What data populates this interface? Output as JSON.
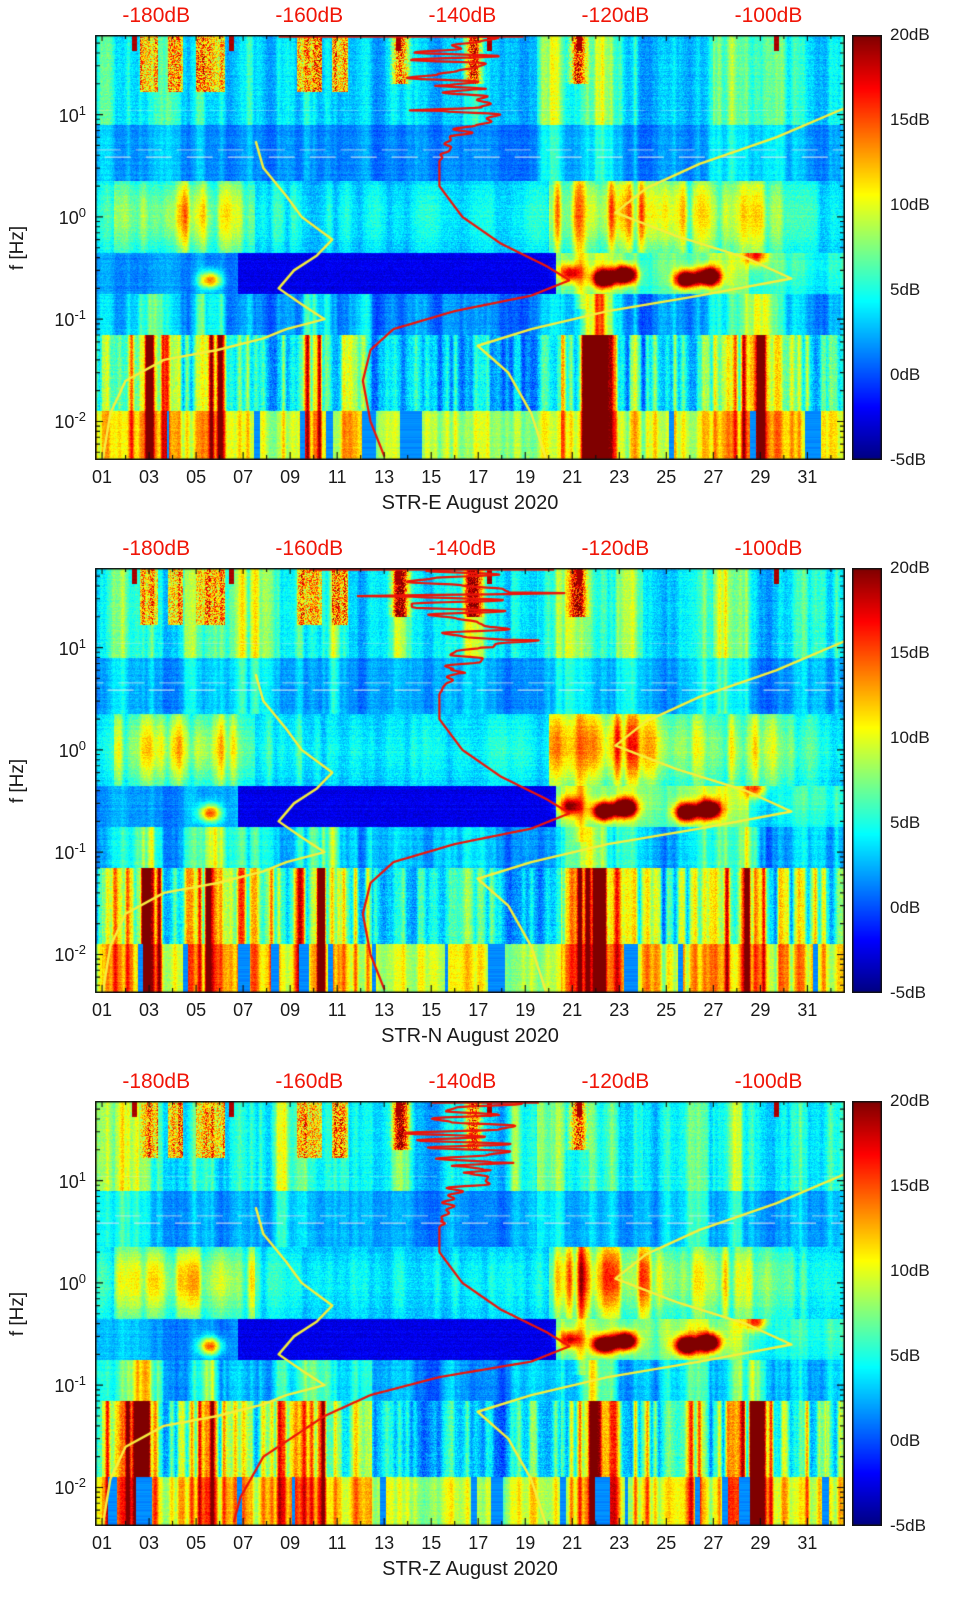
{
  "figure": {
    "ylabel": "f [Hz]",
    "panels": [
      {
        "id": "STR-E",
        "title": "STR-E August 2020"
      },
      {
        "id": "STR-N",
        "title": "STR-N August 2020"
      },
      {
        "id": "STR-Z",
        "title": "STR-Z August 2020"
      }
    ],
    "top_axis": {
      "labels": [
        "-180dB",
        "-160dB",
        "-140dB",
        "-120dB",
        "-100dB"
      ],
      "values_db": [
        -180,
        -160,
        -140,
        -120,
        -100
      ],
      "color": "#f01507"
    },
    "x_axis": {
      "tick_labels": [
        "01",
        "03",
        "05",
        "07",
        "09",
        "11",
        "13",
        "15",
        "17",
        "19",
        "21",
        "23",
        "25",
        "27",
        "29",
        "31"
      ],
      "tick_days": [
        1,
        3,
        5,
        7,
        9,
        11,
        13,
        15,
        17,
        19,
        21,
        23,
        25,
        27,
        29,
        31
      ]
    },
    "y_axis": {
      "base": "10",
      "exponents": [
        "1",
        "0",
        "-1",
        "-2"
      ],
      "exp_values": [
        1,
        0,
        -1,
        -2
      ]
    },
    "colorbar": {
      "labels": [
        "20dB",
        "15dB",
        "10dB",
        "5dB",
        "0dB",
        "-5dB"
      ],
      "values_db": [
        20,
        15,
        10,
        5,
        0,
        -5
      ]
    }
  },
  "chart_data": {
    "type": "heatmap",
    "description": "Three seismic PSD spectrograms (components STR-E, STR-N, STR-Z) for August 2020. x = day of month (01-31), y = frequency in Hz (log scale, ~0.004-60 Hz), color = spectral power deviation in dB (-5 to 20 dB, jet colormap). Overlaid curves are PSD-vs-frequency statistics plotted against the red top dB axis (-188 to -90 dB): red = median PSD, yellow = high/low percentile PSD.",
    "axes": {
      "day_min": 0.7,
      "day_max": 32.6,
      "f_min": 0.0042,
      "f_max": 60,
      "db_min": -188,
      "db_max": -90,
      "v_min": -5,
      "v_max": 20
    },
    "colors": {
      "red_curve": "#ee1409",
      "yellow_curve": "#f6ee3c",
      "frame": "#111111"
    },
    "render_seeds": [
      11,
      57,
      93
    ],
    "features": {
      "hf_red_patches": [
        [
          2.6,
          3.4
        ],
        [
          3.8,
          4.45
        ],
        [
          5.0,
          6.25
        ],
        [
          9.3,
          10.35
        ],
        [
          10.8,
          11.45
        ]
      ],
      "hf_orange_days": [
        13.7,
        16.8,
        21.25
      ],
      "hf_minor_days": [
        13.7,
        16.8,
        18.4
      ],
      "hf_top_dots": [
        2.4,
        6.5,
        13.6,
        17.5,
        21.3,
        29.7
      ],
      "lf_hot_days": [
        2.9,
        5.7,
        10.2,
        22.0,
        28.9
      ],
      "lf_active_ranges": [
        [
          1,
          12.5
        ],
        [
          20.5,
          31.8
        ]
      ],
      "microseism_blobs": [
        [
          22.35,
          0.25,
          22
        ],
        [
          23.25,
          0.27,
          24
        ],
        [
          25.85,
          0.245,
          22
        ],
        [
          26.8,
          0.26,
          24
        ],
        [
          20.9,
          0.28,
          11
        ],
        [
          5.6,
          0.24,
          13
        ],
        [
          28.8,
          0.42,
          11
        ]
      ],
      "bright_column_day": 21.35,
      "light_lines": [
        [
          0.585,
          0.8
        ],
        [
          0.655,
          0.55
        ],
        [
          1.04,
          0.3
        ]
      ]
    },
    "red_jitter": {
      "u_start": 0.55,
      "amp_db": 8,
      "freq": 28
    },
    "panels": [
      {
        "id": "STR-E",
        "red_curve_f_db": [
          [
            60,
            -139
          ],
          [
            25,
            -141
          ],
          [
            12,
            -138
          ],
          [
            6,
            -141
          ],
          [
            3.5,
            -143
          ],
          [
            2,
            -143
          ],
          [
            1,
            -140
          ],
          [
            0.55,
            -135
          ],
          [
            0.33,
            -129
          ],
          [
            0.24,
            -126
          ],
          [
            0.17,
            -131
          ],
          [
            0.12,
            -141
          ],
          [
            0.08,
            -149
          ],
          [
            0.05,
            -152
          ],
          [
            0.025,
            -153
          ],
          [
            0.01,
            -152
          ],
          [
            0.0042,
            -150
          ]
        ],
        "yellow_upper_f_db": [
          [
            11.6,
            -90
          ],
          [
            6,
            -99
          ],
          [
            3.3,
            -109
          ],
          [
            1.9,
            -116
          ],
          [
            1.1,
            -120
          ],
          [
            0.65,
            -112
          ],
          [
            0.4,
            -103
          ],
          [
            0.25,
            -97
          ],
          [
            0.17,
            -109
          ],
          [
            0.12,
            -121
          ],
          [
            0.08,
            -131
          ],
          [
            0.055,
            -138
          ],
          [
            0.03,
            -134
          ],
          [
            0.012,
            -131
          ],
          [
            0.0042,
            -129
          ]
        ],
        "yellow_lower_f_db": [
          [
            5.5,
            -167
          ],
          [
            3.0,
            -166
          ],
          [
            1.6,
            -163
          ],
          [
            1.0,
            -161
          ],
          [
            0.6,
            -157
          ],
          [
            0.42,
            -159
          ],
          [
            0.3,
            -162
          ],
          [
            0.2,
            -164
          ],
          [
            0.14,
            -161
          ],
          [
            0.1,
            -158
          ],
          [
            0.08,
            -163
          ],
          [
            0.065,
            -166
          ],
          [
            0.05,
            -172
          ],
          [
            0.04,
            -179
          ],
          [
            0.025,
            -184
          ],
          [
            0.012,
            -186
          ],
          [
            0.0042,
            -187
          ]
        ],
        "top_clip_db": [
          -164,
          -132
        ]
      },
      {
        "id": "STR-N",
        "red_curve_f_db": [
          [
            60,
            -139
          ],
          [
            25,
            -141
          ],
          [
            12,
            -138
          ],
          [
            6,
            -141
          ],
          [
            3.5,
            -143
          ],
          [
            2,
            -143
          ],
          [
            1,
            -140
          ],
          [
            0.55,
            -135
          ],
          [
            0.33,
            -129
          ],
          [
            0.24,
            -126
          ],
          [
            0.17,
            -131
          ],
          [
            0.12,
            -141
          ],
          [
            0.08,
            -149
          ],
          [
            0.05,
            -152
          ],
          [
            0.025,
            -153
          ],
          [
            0.01,
            -152
          ],
          [
            0.0042,
            -150
          ]
        ],
        "yellow_upper_f_db": [
          [
            11.6,
            -90
          ],
          [
            6,
            -99
          ],
          [
            3.3,
            -109
          ],
          [
            1.9,
            -116
          ],
          [
            1.1,
            -120
          ],
          [
            0.65,
            -112
          ],
          [
            0.4,
            -103
          ],
          [
            0.25,
            -97
          ],
          [
            0.17,
            -109
          ],
          [
            0.12,
            -121
          ],
          [
            0.08,
            -131
          ],
          [
            0.055,
            -138
          ],
          [
            0.03,
            -134
          ],
          [
            0.012,
            -131
          ],
          [
            0.0042,
            -129
          ]
        ],
        "yellow_lower_f_db": [
          [
            5.5,
            -167
          ],
          [
            3.0,
            -166
          ],
          [
            1.6,
            -163
          ],
          [
            1.0,
            -161
          ],
          [
            0.6,
            -157
          ],
          [
            0.42,
            -159
          ],
          [
            0.3,
            -162
          ],
          [
            0.2,
            -164
          ],
          [
            0.14,
            -161
          ],
          [
            0.1,
            -158
          ],
          [
            0.08,
            -163
          ],
          [
            0.065,
            -166
          ],
          [
            0.05,
            -172
          ],
          [
            0.04,
            -179
          ],
          [
            0.025,
            -184
          ],
          [
            0.012,
            -186
          ],
          [
            0.0042,
            -187
          ]
        ],
        "top_clip_db": [
          -160,
          -128
        ]
      },
      {
        "id": "STR-Z",
        "red_curve_f_db": [
          [
            60,
            -139
          ],
          [
            25,
            -141
          ],
          [
            12,
            -138
          ],
          [
            6,
            -141
          ],
          [
            3.5,
            -143
          ],
          [
            2,
            -143
          ],
          [
            1,
            -140
          ],
          [
            0.55,
            -135
          ],
          [
            0.33,
            -129
          ],
          [
            0.24,
            -126
          ],
          [
            0.17,
            -131
          ],
          [
            0.12,
            -143
          ],
          [
            0.08,
            -152
          ],
          [
            0.05,
            -158
          ],
          [
            0.02,
            -166
          ],
          [
            0.008,
            -169
          ],
          [
            0.0042,
            -170
          ]
        ],
        "yellow_upper_f_db": [
          [
            11.6,
            -90
          ],
          [
            6,
            -99
          ],
          [
            3.3,
            -109
          ],
          [
            1.9,
            -116
          ],
          [
            1.1,
            -120
          ],
          [
            0.65,
            -112
          ],
          [
            0.4,
            -103
          ],
          [
            0.25,
            -97
          ],
          [
            0.17,
            -109
          ],
          [
            0.12,
            -121
          ],
          [
            0.08,
            -131
          ],
          [
            0.055,
            -138
          ],
          [
            0.03,
            -134
          ],
          [
            0.012,
            -131
          ],
          [
            0.0042,
            -129
          ]
        ],
        "yellow_lower_f_db": [
          [
            5.5,
            -167
          ],
          [
            3.0,
            -166
          ],
          [
            1.6,
            -163
          ],
          [
            1.0,
            -161
          ],
          [
            0.6,
            -157
          ],
          [
            0.42,
            -159
          ],
          [
            0.3,
            -162
          ],
          [
            0.2,
            -164
          ],
          [
            0.14,
            -161
          ],
          [
            0.1,
            -158
          ],
          [
            0.08,
            -163
          ],
          [
            0.065,
            -166
          ],
          [
            0.05,
            -172
          ],
          [
            0.04,
            -179
          ],
          [
            0.025,
            -184
          ],
          [
            0.012,
            -186
          ],
          [
            0.0042,
            -187
          ]
        ],
        "top_clip_db": [
          -144,
          -130
        ]
      }
    ]
  }
}
